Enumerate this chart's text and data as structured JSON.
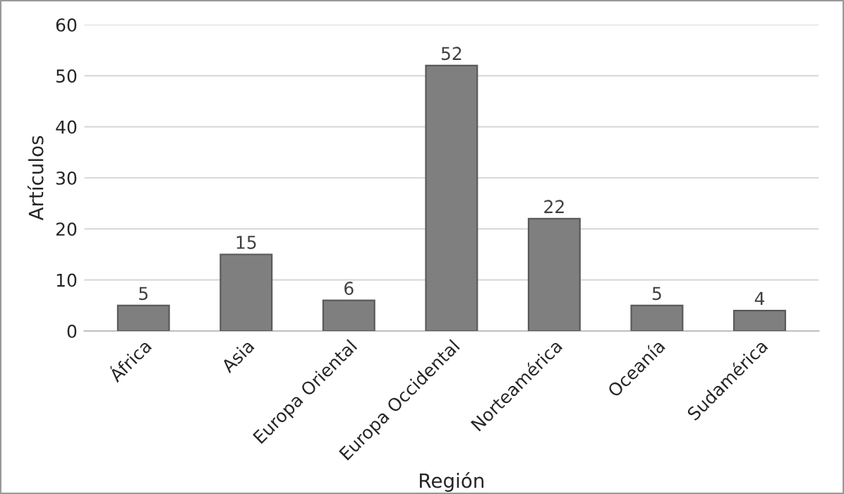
{
  "chart_data": {
    "type": "bar",
    "xlabel": "Región",
    "ylabel": "Artículos",
    "categories": [
      "África",
      "Asia",
      "Europa Oriental",
      "Europa Occidental",
      "Norteamérica",
      "Oceanía",
      "Sudamérica"
    ],
    "values": [
      5,
      15,
      6,
      52,
      22,
      5,
      4
    ],
    "color": "#7f7f7f",
    "data_labels": true,
    "ylim": [
      0,
      60
    ],
    "yticks": [
      0,
      10,
      20,
      30,
      40,
      50,
      60
    ],
    "grid": "y"
  }
}
